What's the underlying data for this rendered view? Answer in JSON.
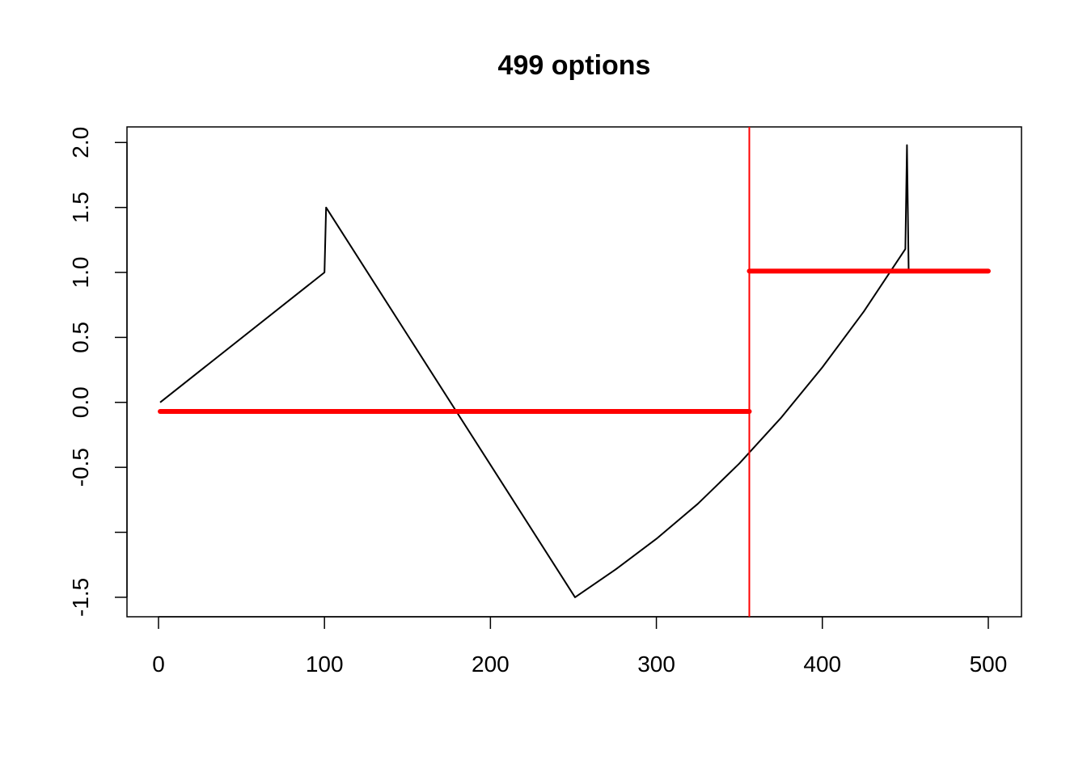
{
  "chart_data": {
    "type": "line",
    "title": "499 options",
    "xlabel": "",
    "ylabel": "",
    "xlim": [
      -19,
      520
    ],
    "ylim": [
      -1.65,
      2.12
    ],
    "x_ticks": [
      0,
      100,
      200,
      300,
      400,
      500
    ],
    "x_tick_labels": [
      "0",
      "100",
      "200",
      "300",
      "400",
      "500"
    ],
    "y_ticks": [
      -1.5,
      -1.0,
      -0.5,
      0.0,
      0.5,
      1.0,
      1.5,
      2.0
    ],
    "y_tick_labels": [
      "-1.5",
      "",
      "-0.5",
      "0.0",
      "0.5",
      "1.0",
      "1.5",
      "2.0"
    ],
    "grid": false,
    "legend": "none",
    "series": [
      {
        "color": "#000000",
        "points": [
          [
            1,
            0.0
          ],
          [
            100,
            1.0
          ],
          [
            101,
            1.5
          ],
          [
            251,
            -1.5
          ],
          [
            275,
            -1.29
          ],
          [
            300,
            -1.05
          ],
          [
            325,
            -0.78
          ],
          [
            350,
            -0.47
          ],
          [
            375,
            -0.12
          ],
          [
            400,
            0.27
          ],
          [
            425,
            0.7
          ],
          [
            450,
            1.18
          ],
          [
            451,
            1.98
          ],
          [
            452,
            1.01
          ]
        ]
      }
    ],
    "segments": [
      {
        "color": "#ff0000",
        "x": [
          1,
          356
        ],
        "y": -0.07
      },
      {
        "color": "#ff0000",
        "x": [
          356,
          500
        ],
        "y": 1.01
      }
    ],
    "vline": {
      "color": "#ff0000",
      "x": 356
    }
  }
}
